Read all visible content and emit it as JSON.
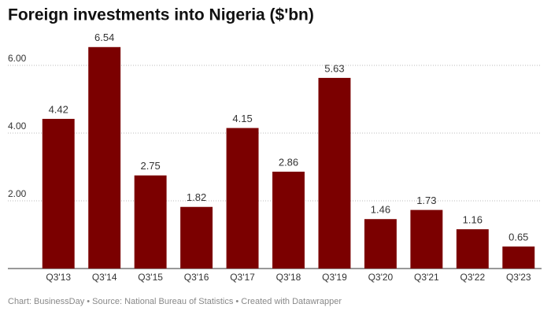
{
  "chart_data": {
    "type": "bar",
    "title": "Foreign investments into Nigeria ($'bn)",
    "categories": [
      "Q3'13",
      "Q3'14",
      "Q3'15",
      "Q3'16",
      "Q3'17",
      "Q3'18",
      "Q3'19",
      "Q3'20",
      "Q3'21",
      "Q3'22",
      "Q3'23"
    ],
    "values": [
      4.42,
      6.54,
      2.75,
      1.82,
      4.15,
      2.86,
      5.63,
      1.46,
      1.73,
      1.16,
      0.65
    ],
    "color": "#7b0000",
    "ylim": [
      0,
      7
    ],
    "yticks": [
      {
        "value": 2,
        "label": "2.00"
      },
      {
        "value": 4,
        "label": "4.00"
      },
      {
        "value": 6,
        "label": "6.00"
      }
    ],
    "grid": true,
    "footer": "Chart: BusinessDay  • Source: National Bureau of Statistics  • Created with Datawrapper"
  }
}
